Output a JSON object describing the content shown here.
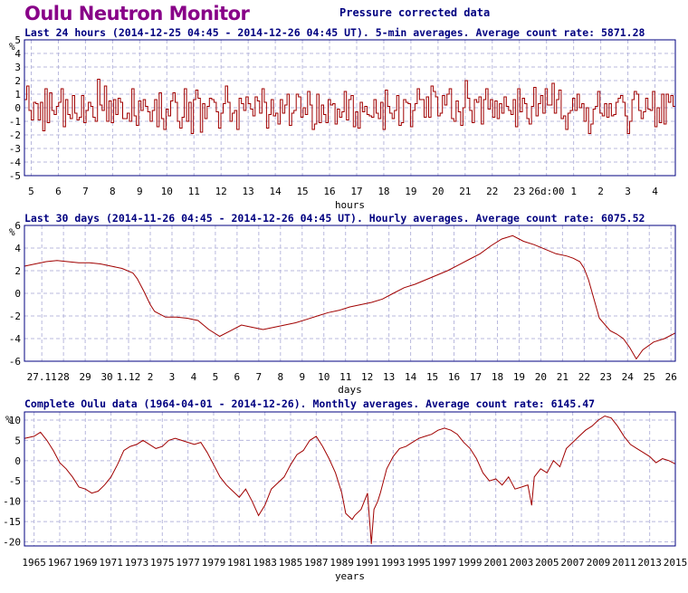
{
  "page": {
    "title": "Oulu Neutron Monitor",
    "subtitle": "Pressure corrected data"
  },
  "colors": {
    "line": "#a00000",
    "grid": "#b8b8dd",
    "frame": "#000080",
    "header_text": "#000080",
    "title": "#880088"
  },
  "chart_data": [
    {
      "type": "line",
      "title": "Last 24 hours (2014-12-25 04:45 - 2014-12-26 04:45 UT). 5-min averages. Average count rate: 5871.28",
      "xlabel": "hours",
      "ylabel": "%",
      "ylim": [
        -5,
        5
      ],
      "yticks": [
        -5,
        -4,
        -3,
        -2,
        -1,
        0,
        1,
        2,
        3,
        4,
        5
      ],
      "xlim": [
        0,
        24
      ],
      "xticks": [
        {
          "x": 0.25,
          "label": "5"
        },
        {
          "x": 1.25,
          "label": "6"
        },
        {
          "x": 2.25,
          "label": "7"
        },
        {
          "x": 3.25,
          "label": "8"
        },
        {
          "x": 4.25,
          "label": "9"
        },
        {
          "x": 5.25,
          "label": "10"
        },
        {
          "x": 6.25,
          "label": "11"
        },
        {
          "x": 7.25,
          "label": "12"
        },
        {
          "x": 8.25,
          "label": "13"
        },
        {
          "x": 9.25,
          "label": "14"
        },
        {
          "x": 10.25,
          "label": "15"
        },
        {
          "x": 11.25,
          "label": "16"
        },
        {
          "x": 12.25,
          "label": "17"
        },
        {
          "x": 13.25,
          "label": "18"
        },
        {
          "x": 14.25,
          "label": "19"
        },
        {
          "x": 15.25,
          "label": "20"
        },
        {
          "x": 16.25,
          "label": "21"
        },
        {
          "x": 17.25,
          "label": "22"
        },
        {
          "x": 18.25,
          "label": "23"
        },
        {
          "x": 19.25,
          "label": "26d:00"
        },
        {
          "x": 20.25,
          "label": "1"
        },
        {
          "x": 21.25,
          "label": "2"
        },
        {
          "x": 22.25,
          "label": "3"
        },
        {
          "x": 23.25,
          "label": "4"
        }
      ],
      "grid": true,
      "step": true,
      "series": [
        {
          "values": [
            0.6,
            1.6,
            -0.2,
            -0.9,
            0.4,
            0.3,
            -0.9,
            0.4,
            -1.7,
            1.4,
            -1.1,
            1.1,
            -0.2,
            -0.5,
            0.1,
            0.4,
            1.4,
            -1.4,
            0.6,
            -0.5,
            -0.8,
            0.9,
            -0.4,
            -0.9,
            -0.7,
            0.9,
            -1.1,
            -0.2,
            0.4,
            0.1,
            -0.7,
            -1.0,
            2.1,
            0.2,
            -0.2,
            1.6,
            -1.0,
            0.5,
            -1.1,
            0.6,
            -0.5,
            0.7,
            0.4,
            -0.8,
            -0.8,
            -0.4,
            -1.0,
            1.4,
            -0.6,
            -1.3,
            0.5,
            -0.2,
            0.6,
            0.1,
            -0.3,
            -1.0,
            -0.2,
            0.6,
            -1.4,
            1.1,
            -0.8,
            -1.6,
            -0.1,
            -0.6,
            0.5,
            1.1,
            0.4,
            -1.0,
            -1.5,
            -0.7,
            1.4,
            -1.0,
            0.4,
            -1.9,
            0.6,
            1.3,
            0.7,
            -1.8,
            0.3,
            -0.8,
            0.1,
            0.7,
            0.6,
            0.4,
            -0.3,
            -1.5,
            -0.4,
            0.3,
            1.6,
            0.4,
            -1.0,
            -0.4,
            -0.2,
            -1.6,
            0.7,
            0.3,
            -0.2,
            0.8,
            0.3,
            -0.1,
            -0.6,
            0.8,
            0.5,
            -0.4,
            1.4,
            0.4,
            -1.5,
            -0.5,
            0.6,
            -0.6,
            -0.4,
            -1.2,
            0.6,
            -0.4,
            0.2,
            1.0,
            -1.3,
            -0.4,
            -0.2,
            1.0,
            0.8,
            -0.7,
            0.0,
            -0.5,
            1.2,
            0.2,
            -1.6,
            -1.2,
            1.0,
            -1.1,
            0.2,
            -0.5,
            -1.1,
            0.6,
            0.2,
            0.3,
            -1.2,
            -0.1,
            -0.7,
            -0.3,
            1.2,
            -0.9,
            0.6,
            0.9,
            -1.4,
            -0.3,
            -1.5,
            0.4,
            -0.3,
            0.1,
            -0.5,
            -0.6,
            -0.7,
            0.6,
            -0.4,
            -0.8,
            0.4,
            -1.6,
            1.3,
            0.1,
            -0.4,
            -0.8,
            -0.2,
            0.9,
            -1.3,
            -1.1,
            0.6,
            0.4,
            0.3,
            -1.4,
            -0.2,
            0.3,
            1.4,
            0.6,
            0.6,
            -0.7,
            0.8,
            -0.7,
            1.6,
            1.2,
            0.8,
            -0.6,
            -0.4,
            0.9,
            0.2,
            1.0,
            1.4,
            -0.8,
            -1.0,
            0.5,
            -0.3,
            -1.3,
            0.0,
            2.0,
            0.7,
            -0.2,
            -1.1,
            0.6,
            0.4,
            0.8,
            -1.2,
            0.6,
            1.4,
            -0.1,
            0.6,
            -0.7,
            0.5,
            -0.8,
            0.3,
            -0.4,
            0.8,
            0.1,
            -0.2,
            -0.5,
            0.6,
            -1.4,
            1.4,
            -0.3,
            0.7,
            0.3,
            -0.8,
            -1.2,
            0.1,
            1.5,
            -0.6,
            0.3,
            0.9,
            -0.4,
            1.4,
            0.2,
            0.2,
            1.8,
            -0.4,
            0.6,
            1.3,
            -0.8,
            -0.6,
            -1.6,
            -0.4,
            -0.2,
            0.7,
            -0.2,
            1.0,
            0.0,
            0.3,
            -1.0,
            0.0,
            -1.9,
            -1.2,
            -0.1,
            0.1,
            1.2,
            -0.4,
            -0.6,
            0.3,
            -0.7,
            0.3,
            -0.6,
            -0.5,
            0.4,
            0.7,
            0.9,
            0.4,
            -0.6,
            -1.9,
            -1.0,
            0.6,
            1.2,
            1.0,
            -0.2,
            -0.8,
            -0.3,
            0.7,
            -0.1,
            -0.2,
            1.2,
            -1.4,
            0.0,
            -1.1,
            1.0,
            -1.2,
            1.0,
            0.4,
            0.9,
            0.1
          ]
        }
      ]
    },
    {
      "type": "line",
      "title": "Last 30 days (2014-11-26 04:45 - 2014-12-26 04:45 UT). Hourly averages. Average count rate: 6075.52",
      "xlabel": "days",
      "ylabel": "%",
      "ylim": [
        -6,
        6
      ],
      "yticks": [
        -6,
        -4,
        -2,
        0,
        2,
        4,
        6
      ],
      "xlim": [
        0,
        30
      ],
      "xticks": [
        {
          "x": 0.8,
          "label": "27.11"
        },
        {
          "x": 1.8,
          "label": "28"
        },
        {
          "x": 2.8,
          "label": "29"
        },
        {
          "x": 3.8,
          "label": "30"
        },
        {
          "x": 4.8,
          "label": "1.12"
        },
        {
          "x": 5.8,
          "label": "2"
        },
        {
          "x": 6.8,
          "label": "3"
        },
        {
          "x": 7.8,
          "label": "4"
        },
        {
          "x": 8.8,
          "label": "5"
        },
        {
          "x": 9.8,
          "label": "6"
        },
        {
          "x": 10.8,
          "label": "7"
        },
        {
          "x": 11.8,
          "label": "8"
        },
        {
          "x": 12.8,
          "label": "9"
        },
        {
          "x": 13.8,
          "label": "10"
        },
        {
          "x": 14.8,
          "label": "11"
        },
        {
          "x": 15.8,
          "label": "12"
        },
        {
          "x": 16.8,
          "label": "13"
        },
        {
          "x": 17.8,
          "label": "14"
        },
        {
          "x": 18.8,
          "label": "15"
        },
        {
          "x": 19.8,
          "label": "16"
        },
        {
          "x": 20.8,
          "label": "17"
        },
        {
          "x": 21.8,
          "label": "18"
        },
        {
          "x": 22.8,
          "label": "19"
        },
        {
          "x": 23.8,
          "label": "20"
        },
        {
          "x": 24.8,
          "label": "21"
        },
        {
          "x": 25.8,
          "label": "22"
        },
        {
          "x": 26.8,
          "label": "23"
        },
        {
          "x": 27.8,
          "label": "24"
        },
        {
          "x": 28.8,
          "label": "25"
        },
        {
          "x": 29.8,
          "label": "26"
        }
      ],
      "grid": true,
      "series": [
        {
          "x": [
            0,
            0.5,
            1,
            1.5,
            2,
            2.5,
            3,
            3.5,
            4,
            4.5,
            5,
            5.2,
            5.5,
            5.8,
            6,
            6.5,
            7,
            7.5,
            8,
            8.5,
            9,
            9.5,
            10,
            10.5,
            11,
            11.5,
            12,
            12.5,
            13,
            13.5,
            14,
            14.5,
            15,
            15.5,
            16,
            16.5,
            17,
            17.5,
            18,
            18.5,
            19,
            19.5,
            20,
            20.5,
            21,
            21.5,
            22,
            22.5,
            23,
            23.5,
            24,
            24.5,
            25,
            25.3,
            25.6,
            25.8,
            26,
            26.5,
            27,
            27.3,
            27.6,
            27.9,
            28.2,
            28.5,
            29,
            29.5,
            30
          ],
          "y": [
            2.4,
            2.6,
            2.8,
            2.9,
            2.8,
            2.7,
            2.7,
            2.6,
            2.4,
            2.2,
            1.8,
            1.3,
            0.2,
            -1.0,
            -1.6,
            -2.1,
            -2.1,
            -2.2,
            -2.4,
            -3.2,
            -3.8,
            -3.3,
            -2.8,
            -3.0,
            -3.2,
            -3.0,
            -2.8,
            -2.6,
            -2.3,
            -2.0,
            -1.7,
            -1.5,
            -1.2,
            -1.0,
            -0.8,
            -0.5,
            0.0,
            0.5,
            0.8,
            1.2,
            1.6,
            2.0,
            2.5,
            3.0,
            3.5,
            4.2,
            4.8,
            5.1,
            4.6,
            4.3,
            3.9,
            3.5,
            3.3,
            3.1,
            2.8,
            2.2,
            1.2,
            -2.2,
            -3.3,
            -3.6,
            -4.0,
            -4.8,
            -5.8,
            -5.0,
            -4.3,
            -4.0,
            -3.5
          ]
        }
      ]
    },
    {
      "type": "line",
      "title": "Complete Oulu data (1964-04-01 - 2014-12-26). Monthly averages. Average count rate: 6145.47",
      "xlabel": "years",
      "ylabel": "%",
      "ylim": [
        -21,
        12
      ],
      "yticks": [
        -20,
        -15,
        -10,
        -5,
        0,
        5,
        10
      ],
      "xlim": [
        1964.25,
        2015.0
      ],
      "xticks": [
        {
          "x": 1965,
          "label": "1965"
        },
        {
          "x": 1967,
          "label": "1967"
        },
        {
          "x": 1969,
          "label": "1969"
        },
        {
          "x": 1971,
          "label": "1971"
        },
        {
          "x": 1973,
          "label": "1973"
        },
        {
          "x": 1975,
          "label": "1975"
        },
        {
          "x": 1977,
          "label": "1977"
        },
        {
          "x": 1979,
          "label": "1979"
        },
        {
          "x": 1981,
          "label": "1981"
        },
        {
          "x": 1983,
          "label": "1983"
        },
        {
          "x": 1985,
          "label": "1985"
        },
        {
          "x": 1987,
          "label": "1987"
        },
        {
          "x": 1989,
          "label": "1989"
        },
        {
          "x": 1991,
          "label": "1991"
        },
        {
          "x": 1993,
          "label": "1993"
        },
        {
          "x": 1995,
          "label": "1995"
        },
        {
          "x": 1997,
          "label": "1997"
        },
        {
          "x": 1999,
          "label": "1999"
        },
        {
          "x": 2001,
          "label": "2001"
        },
        {
          "x": 2003,
          "label": "2003"
        },
        {
          "x": 2005,
          "label": "2005"
        },
        {
          "x": 2007,
          "label": "2007"
        },
        {
          "x": 2009,
          "label": "2009"
        },
        {
          "x": 2011,
          "label": "2011"
        },
        {
          "x": 2013,
          "label": "2013"
        },
        {
          "x": 2015,
          "label": "2015"
        }
      ],
      "grid": true,
      "series": [
        {
          "x": [
            1964.25,
            1965,
            1965.5,
            1966,
            1966.5,
            1967,
            1967.5,
            1968,
            1968.5,
            1969,
            1969.5,
            1970,
            1970.5,
            1971,
            1971.5,
            1972,
            1972.5,
            1973,
            1973.5,
            1974,
            1974.5,
            1975,
            1975.5,
            1976,
            1976.5,
            1977,
            1977.5,
            1978,
            1978.5,
            1979,
            1979.5,
            1980,
            1980.5,
            1981,
            1981.5,
            1982,
            1982.5,
            1983,
            1983.5,
            1984,
            1984.5,
            1985,
            1985.5,
            1986,
            1986.5,
            1987,
            1987.5,
            1988,
            1988.5,
            1989,
            1989.3,
            1989.8,
            1990,
            1990.5,
            1991,
            1991.3,
            1991.5,
            1991.8,
            1992,
            1992.5,
            1993,
            1993.5,
            1994,
            1994.5,
            1995,
            1995.5,
            1996,
            1996.5,
            1997,
            1997.5,
            1998,
            1998.5,
            1999,
            1999.5,
            2000,
            2000.5,
            2001,
            2001.5,
            2002,
            2002.5,
            2003,
            2003.5,
            2003.8,
            2004,
            2004.5,
            2005,
            2005.5,
            2006,
            2006.5,
            2007,
            2007.5,
            2008,
            2008.5,
            2009,
            2009.5,
            2010,
            2010.5,
            2011,
            2011.5,
            2012,
            2012.5,
            2013,
            2013.5,
            2014,
            2014.5,
            2015
          ],
          "y": [
            5.5,
            6.0,
            7.0,
            5.0,
            2.5,
            -0.5,
            -2.0,
            -4.0,
            -6.5,
            -7.0,
            -8.0,
            -7.5,
            -6.0,
            -4.0,
            -1.0,
            2.5,
            3.5,
            4.0,
            5.0,
            4.0,
            3.0,
            3.5,
            5.0,
            5.5,
            5.0,
            4.5,
            4.0,
            4.5,
            2.0,
            -1.0,
            -4.0,
            -6.0,
            -7.5,
            -9.0,
            -7.0,
            -10.0,
            -13.5,
            -11.0,
            -7.0,
            -5.5,
            -4.0,
            -1.0,
            1.5,
            2.5,
            5.0,
            6.0,
            3.5,
            0.5,
            -3.0,
            -8.0,
            -13.0,
            -14.5,
            -13.5,
            -12.0,
            -8.0,
            -20.5,
            -12.0,
            -10.0,
            -8.0,
            -2.0,
            1.0,
            3.0,
            3.5,
            4.5,
            5.5,
            6.0,
            6.5,
            7.5,
            8.0,
            7.5,
            6.5,
            4.5,
            3.0,
            0.5,
            -3.0,
            -5.0,
            -4.5,
            -6.0,
            -4.0,
            -7.0,
            -6.5,
            -6.0,
            -11.0,
            -4.0,
            -2.0,
            -3.0,
            0.0,
            -1.5,
            3.0,
            4.5,
            6.0,
            7.5,
            8.5,
            10.0,
            11.0,
            10.5,
            8.5,
            6.0,
            4.0,
            3.0,
            2.0,
            1.0,
            -0.5,
            0.5,
            0.0,
            -0.8
          ]
        }
      ]
    }
  ]
}
